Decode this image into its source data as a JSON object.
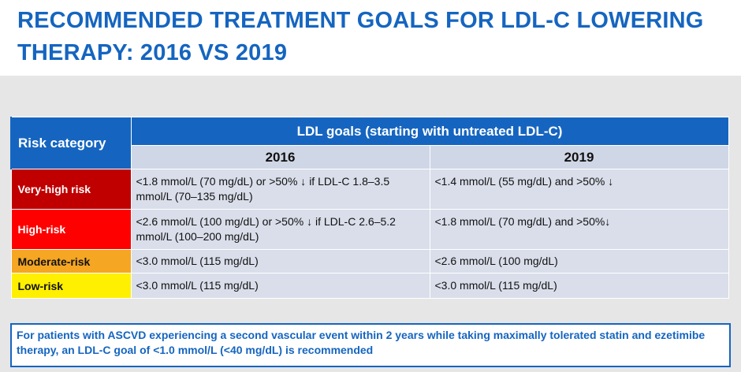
{
  "title": "RECOMMENDED TREATMENT GOALS FOR LDL-C LOWERING THERAPY: 2016 VS 2019",
  "table": {
    "risk_header": "Risk category",
    "ldl_header": "LDL goals (starting with untreated LDL-C)",
    "year_2016": "2016",
    "year_2019": "2019",
    "rows": [
      {
        "category": "Very-high risk",
        "goal_2016": "<1.8 mmol/L (70 mg/dL) or >50% ↓ if LDL-C 1.8–3.5 mmol/L (70–135 mg/dL)",
        "goal_2019": "<1.4 mmol/L (55 mg/dL) and >50% ↓"
      },
      {
        "category": "High-risk",
        "goal_2016": "<2.6 mmol/L (100 mg/dL) or >50% ↓ if LDL-C 2.6–5.2 mmol/L (100–200 mg/dL)",
        "goal_2019": "<1.8 mmol/L (70 mg/dL) and >50%↓"
      },
      {
        "category": "Moderate-risk",
        "goal_2016": "<3.0 mmol/L (115 mg/dL)",
        "goal_2019": "<2.6 mmol/L (100 mg/dL)"
      },
      {
        "category": "Low-risk",
        "goal_2016": "<3.0 mmol/L (115 mg/dL)",
        "goal_2019": "<3.0 mmol/L (115 mg/dL)"
      }
    ]
  },
  "note": "For patients with ASCVD experiencing a second vascular event within 2 years while taking maximally tolerated statin and ezetimibe therapy, an LDL-C goal of <1.0 mmol/L (<40 mg/dL) is recommended",
  "colors": {
    "brand_blue": "#1565c0",
    "very_high": "#c00000",
    "high": "#ff0000",
    "moderate": "#f5a623",
    "low": "#ffef00"
  }
}
